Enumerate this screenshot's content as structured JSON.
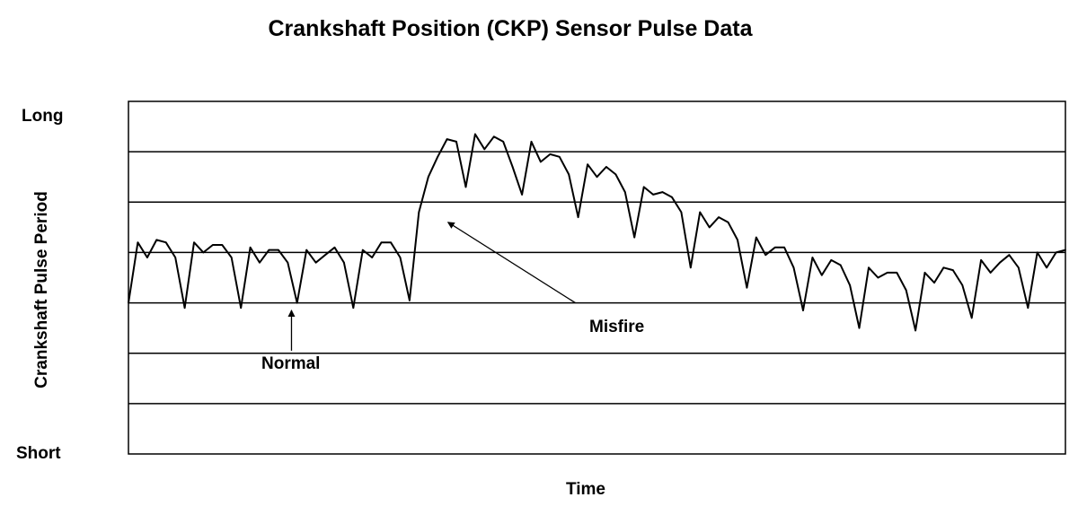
{
  "chart_data": {
    "type": "line",
    "title": "Crankshaft Position (CKP) Sensor Pulse Data",
    "xlabel": "Time",
    "ylabel": "Crankshaft Pulse Period",
    "y_top_label": "Long",
    "y_bottom_label": "Short",
    "grid": true,
    "ylim": [
      0,
      7
    ],
    "xlim": [
      0,
      100
    ],
    "line_color": "#000000",
    "series": [
      {
        "x": [
          0,
          1,
          2,
          3,
          4,
          5,
          6,
          7,
          8,
          9,
          10,
          11,
          12,
          13,
          14,
          15,
          16,
          17,
          18,
          19,
          20,
          21,
          22,
          23,
          24,
          25,
          26,
          27,
          28,
          29,
          30,
          31,
          32,
          33,
          34,
          35,
          36,
          37,
          38,
          39,
          40,
          41,
          42,
          43,
          44,
          45,
          46,
          47,
          48,
          49,
          50,
          51,
          52,
          53,
          54,
          55,
          56,
          57,
          58,
          59,
          60,
          61,
          62,
          63,
          64,
          65,
          66,
          67,
          68,
          69,
          70,
          71,
          72,
          73,
          74,
          75,
          76,
          77,
          78,
          79,
          80,
          81,
          82,
          83,
          84,
          85,
          86,
          87,
          88,
          89,
          90,
          91,
          92,
          93,
          94,
          95,
          96,
          97,
          98,
          99,
          100
        ],
        "values": [
          3.0,
          4.2,
          3.9,
          4.25,
          4.2,
          3.9,
          2.9,
          4.2,
          4.0,
          4.15,
          4.15,
          3.9,
          2.9,
          4.1,
          3.8,
          4.05,
          4.05,
          3.8,
          3.0,
          4.05,
          3.8,
          3.95,
          4.1,
          3.8,
          2.9,
          4.05,
          3.9,
          4.2,
          4.2,
          3.9,
          3.05,
          4.8,
          5.5,
          5.9,
          6.25,
          6.2,
          5.3,
          6.35,
          6.05,
          6.3,
          6.2,
          5.7,
          5.15,
          6.2,
          5.8,
          5.95,
          5.9,
          5.55,
          4.7,
          5.75,
          5.5,
          5.7,
          5.55,
          5.2,
          4.3,
          5.3,
          5.15,
          5.2,
          5.1,
          4.8,
          3.7,
          4.8,
          4.5,
          4.7,
          4.6,
          4.25,
          3.3,
          4.3,
          3.95,
          4.1,
          4.1,
          3.7,
          2.85,
          3.9,
          3.55,
          3.85,
          3.75,
          3.35,
          2.5,
          3.7,
          3.5,
          3.6,
          3.6,
          3.25,
          2.45,
          3.6,
          3.4,
          3.7,
          3.65,
          3.35,
          2.7,
          3.85,
          3.6,
          3.8,
          3.95,
          3.7,
          2.9,
          4.0,
          3.7,
          4.0,
          4.05
        ]
      }
    ],
    "annotations": [
      {
        "text": "Normal",
        "arrow_from": {
          "x": 17.4,
          "y": 2.05
        },
        "arrow_to": {
          "x": 17.4,
          "y": 2.85
        }
      },
      {
        "text": "Misfire",
        "arrow_from": {
          "x": 47.7,
          "y": 3.0
        },
        "arrow_to": {
          "x": 34.1,
          "y": 4.6
        }
      }
    ]
  }
}
